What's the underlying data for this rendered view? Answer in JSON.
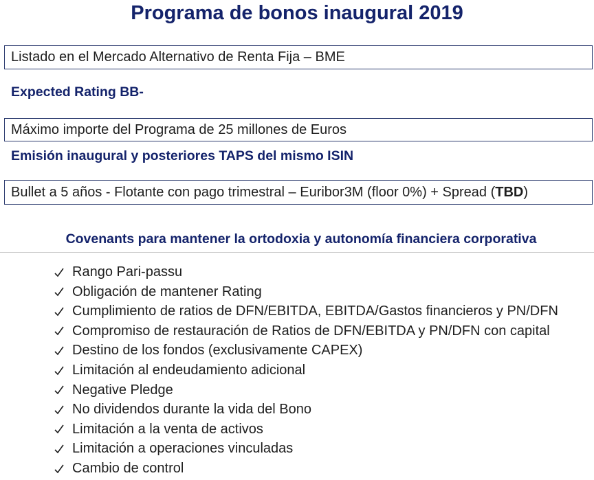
{
  "header": {
    "title": "Programa de bonos inaugural 2019"
  },
  "items": [
    {
      "text": "Listado en el Mercado Alternativo de Renta Fija – BME"
    },
    {
      "text": "Expected Rating BB-"
    },
    {
      "text": "Máximo importe del Programa de 25 millones de Euros"
    },
    {
      "text": "Emisión inaugural y posteriores TAPS del mismo ISIN"
    },
    {
      "parts": [
        "Bullet a 5 años - Flotante con pago trimestral – Euribor3M (floor 0%) + Spread (",
        "TBD",
        ")"
      ]
    }
  ],
  "covenants": {
    "title": "Covenants para mantener la ortodoxia y autonomía financiera corporativa",
    "list": [
      "Rango Pari-passu",
      "Obligación de mantener Rating",
      "Cumplimiento de ratios de DFN/EBITDA, EBITDA/Gastos financieros y PN/DFN",
      "Compromiso de restauración de Ratios de DFN/EBITDA y PN/DFN con capital",
      "Destino de los fondos (exclusivamente CAPEX)",
      "Limitación al endeudamiento adicional",
      "Negative Pledge",
      "No dividendos durante la vida del Bono",
      "Limitación a la venta de activos",
      "Limitación a operaciones vinculadas",
      "Cambio de control"
    ]
  }
}
